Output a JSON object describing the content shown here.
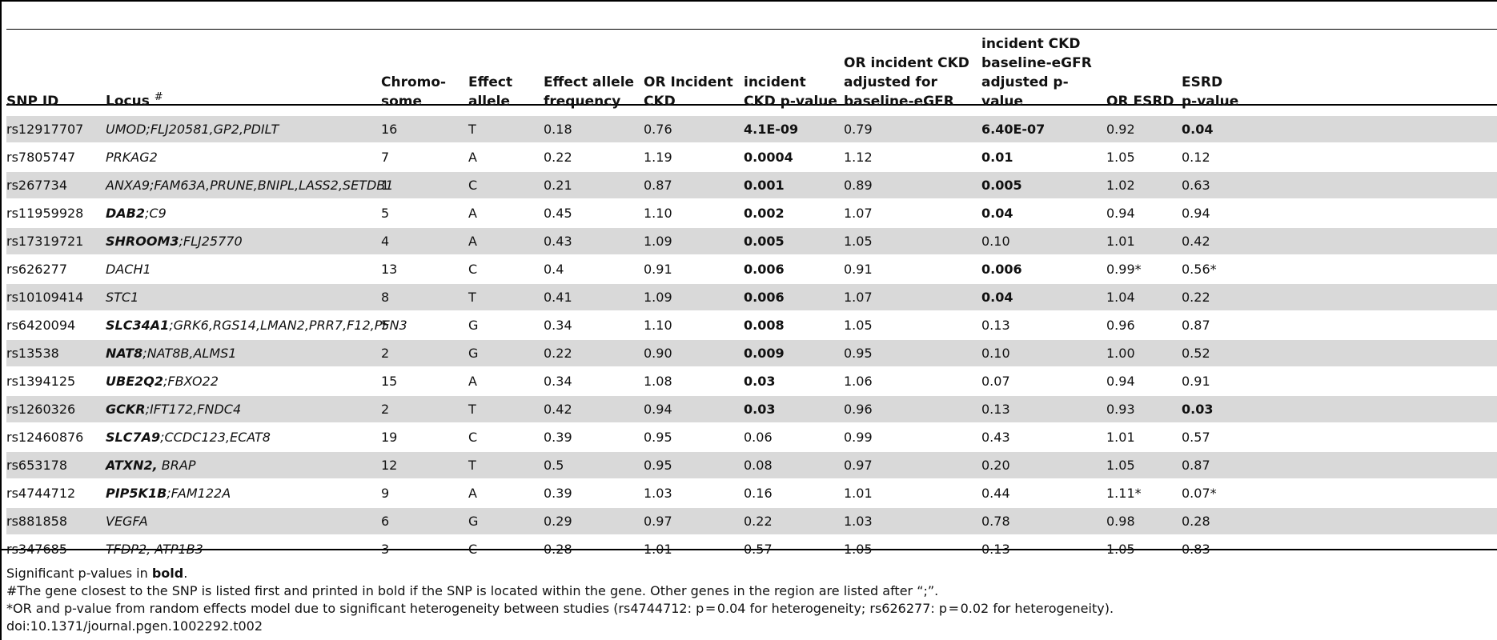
{
  "headers": {
    "snp_id": "SNP ID",
    "locus": "Locus",
    "locus_mark": "#",
    "chromosome_1": "Chromo-",
    "chromosome_2": "some",
    "effect_allele_1": "Effect",
    "effect_allele_2": "allele",
    "eaf_1": "Effect allele",
    "eaf_2": "frequency",
    "or_incident_1": "OR Incident",
    "or_incident_2": "CKD",
    "inc_p_1": "incident",
    "inc_p_2": "CKD p-value",
    "or_adj_1": "OR incident CKD",
    "or_adj_2": "adjusted for",
    "or_adj_3": "baseline-eGFR",
    "adj_p_1": "incident CKD",
    "adj_p_2": "baseline-eGFR",
    "adj_p_3": "adjusted p-value",
    "or_esrd": "OR ESRD",
    "esrd_p_1": "ESRD",
    "esrd_p_2": "p-value"
  },
  "rows": [
    {
      "snp": "rs12917707",
      "locus_bold": "",
      "locus_rest": "UMOD;FLJ20581,GP2,PDILT",
      "chr": "16",
      "allele": "T",
      "eaf": "0.18",
      "or_inc": "0.76",
      "p_inc": "4.1E-09",
      "p_inc_bold": true,
      "or_adj": "0.79",
      "p_adj": "6.40E-07",
      "p_adj_bold": true,
      "or_esrd": "0.92",
      "p_esrd": "0.04",
      "p_esrd_bold": true
    },
    {
      "snp": "rs7805747",
      "locus_bold": "",
      "locus_rest": "PRKAG2",
      "chr": "7",
      "allele": "A",
      "eaf": "0.22",
      "or_inc": "1.19",
      "p_inc": "0.0004",
      "p_inc_bold": true,
      "or_adj": "1.12",
      "p_adj": "0.01",
      "p_adj_bold": true,
      "or_esrd": "1.05",
      "p_esrd": "0.12",
      "p_esrd_bold": false
    },
    {
      "snp": "rs267734",
      "locus_bold": "",
      "locus_rest": "ANXA9;FAM63A,PRUNE,BNIPL,LASS2,SETDB1",
      "chr": "1",
      "allele": "C",
      "eaf": "0.21",
      "or_inc": "0.87",
      "p_inc": "0.001",
      "p_inc_bold": true,
      "or_adj": "0.89",
      "p_adj": "0.005",
      "p_adj_bold": true,
      "or_esrd": "1.02",
      "p_esrd": "0.63",
      "p_esrd_bold": false
    },
    {
      "snp": "rs11959928",
      "locus_bold": "DAB2",
      "locus_rest": ";C9",
      "chr": "5",
      "allele": "A",
      "eaf": "0.45",
      "or_inc": "1.10",
      "p_inc": "0.002",
      "p_inc_bold": true,
      "or_adj": "1.07",
      "p_adj": "0.04",
      "p_adj_bold": true,
      "or_esrd": "0.94",
      "p_esrd": "0.94",
      "p_esrd_bold": false
    },
    {
      "snp": "rs17319721",
      "locus_bold": "SHROOM3",
      "locus_rest": ";FLJ25770",
      "chr": "4",
      "allele": "A",
      "eaf": "0.43",
      "or_inc": "1.09",
      "p_inc": "0.005",
      "p_inc_bold": true,
      "or_adj": "1.05",
      "p_adj": "0.10",
      "p_adj_bold": false,
      "or_esrd": "1.01",
      "p_esrd": "0.42",
      "p_esrd_bold": false
    },
    {
      "snp": "rs626277",
      "locus_bold": "",
      "locus_rest": "DACH1",
      "chr": "13",
      "allele": "C",
      "eaf": "0.4",
      "or_inc": "0.91",
      "p_inc": "0.006",
      "p_inc_bold": true,
      "or_adj": "0.91",
      "p_adj": "0.006",
      "p_adj_bold": true,
      "or_esrd": "0.99*",
      "p_esrd": "0.56*",
      "p_esrd_bold": false
    },
    {
      "snp": "rs10109414",
      "locus_bold": "",
      "locus_rest": "STC1",
      "chr": "8",
      "allele": "T",
      "eaf": "0.41",
      "or_inc": "1.09",
      "p_inc": "0.006",
      "p_inc_bold": true,
      "or_adj": "1.07",
      "p_adj": "0.04",
      "p_adj_bold": true,
      "or_esrd": "1.04",
      "p_esrd": "0.22",
      "p_esrd_bold": false
    },
    {
      "snp": "rs6420094",
      "locus_bold": "SLC34A1",
      "locus_rest": ";GRK6,RGS14,LMAN2,PRR7,F12,PFN3",
      "chr": "5",
      "allele": "G",
      "eaf": "0.34",
      "or_inc": "1.10",
      "p_inc": "0.008",
      "p_inc_bold": true,
      "or_adj": "1.05",
      "p_adj": "0.13",
      "p_adj_bold": false,
      "or_esrd": "0.96",
      "p_esrd": "0.87",
      "p_esrd_bold": false
    },
    {
      "snp": "rs13538",
      "locus_bold": "NAT8",
      "locus_rest": ";NAT8B,ALMS1",
      "chr": "2",
      "allele": "G",
      "eaf": "0.22",
      "or_inc": "0.90",
      "p_inc": "0.009",
      "p_inc_bold": true,
      "or_adj": "0.95",
      "p_adj": "0.10",
      "p_adj_bold": false,
      "or_esrd": "1.00",
      "p_esrd": "0.52",
      "p_esrd_bold": false
    },
    {
      "snp": "rs1394125",
      "locus_bold": "UBE2Q2",
      "locus_rest": ";FBXO22",
      "chr": "15",
      "allele": "A",
      "eaf": "0.34",
      "or_inc": "1.08",
      "p_inc": "0.03",
      "p_inc_bold": true,
      "or_adj": "1.06",
      "p_adj": "0.07",
      "p_adj_bold": false,
      "or_esrd": "0.94",
      "p_esrd": "0.91",
      "p_esrd_bold": false
    },
    {
      "snp": "rs1260326",
      "locus_bold": "GCKR",
      "locus_rest": ";IFT172,FNDC4",
      "chr": "2",
      "allele": "T",
      "eaf": "0.42",
      "or_inc": "0.94",
      "p_inc": "0.03",
      "p_inc_bold": true,
      "or_adj": "0.96",
      "p_adj": "0.13",
      "p_adj_bold": false,
      "or_esrd": "0.93",
      "p_esrd": "0.03",
      "p_esrd_bold": true
    },
    {
      "snp": "rs12460876",
      "locus_bold": "SLC7A9",
      "locus_rest": ";CCDC123,ECAT8",
      "chr": "19",
      "allele": "C",
      "eaf": "0.39",
      "or_inc": "0.95",
      "p_inc": "0.06",
      "p_inc_bold": false,
      "or_adj": "0.99",
      "p_adj": "0.43",
      "p_adj_bold": false,
      "or_esrd": "1.01",
      "p_esrd": "0.57",
      "p_esrd_bold": false
    },
    {
      "snp": "rs653178",
      "locus_bold": "ATXN2,",
      "locus_rest": " BRAP",
      "chr": "12",
      "allele": "T",
      "eaf": "0.5",
      "or_inc": "0.95",
      "p_inc": "0.08",
      "p_inc_bold": false,
      "or_adj": "0.97",
      "p_adj": "0.20",
      "p_adj_bold": false,
      "or_esrd": "1.05",
      "p_esrd": "0.87",
      "p_esrd_bold": false
    },
    {
      "snp": "rs4744712",
      "locus_bold": "PIP5K1B",
      "locus_rest": ";FAM122A",
      "chr": "9",
      "allele": "A",
      "eaf": "0.39",
      "or_inc": "1.03",
      "p_inc": "0.16",
      "p_inc_bold": false,
      "or_adj": "1.01",
      "p_adj": "0.44",
      "p_adj_bold": false,
      "or_esrd": "1.11*",
      "p_esrd": "0.07*",
      "p_esrd_bold": false
    },
    {
      "snp": "rs881858",
      "locus_bold": "",
      "locus_rest": "VEGFA",
      "chr": "6",
      "allele": "G",
      "eaf": "0.29",
      "or_inc": "0.97",
      "p_inc": "0.22",
      "p_inc_bold": false,
      "or_adj": "1.03",
      "p_adj": "0.78",
      "p_adj_bold": false,
      "or_esrd": "0.98",
      "p_esrd": "0.28",
      "p_esrd_bold": false
    },
    {
      "snp": "rs347685",
      "locus_bold": "",
      "locus_rest": "TFDP2, ATP1B3",
      "chr": "3",
      "allele": "C",
      "eaf": "0.28",
      "or_inc": "1.01",
      "p_inc": "0.57",
      "p_inc_bold": false,
      "or_adj": "1.05",
      "p_adj": "0.13",
      "p_adj_bold": false,
      "or_esrd": "1.05",
      "p_esrd": "0.83",
      "p_esrd_bold": false
    }
  ],
  "footnotes": {
    "sig_prefix": "Significant p-values in ",
    "sig_bold": "bold",
    "sig_suffix": ".",
    "hash_note": "#The gene closest to the SNP is listed first and printed in bold if the SNP is located within the gene. Other genes in the region are listed after “;”.",
    "star_note": "*OR and p-value from random effects model due to significant heterogeneity between studies (rs4744712: p = 0.04 for heterogeneity; rs626277: p = 0.02 for heterogeneity).",
    "doi": "doi:10.1371/journal.pgen.1002292.t002"
  },
  "colors": {
    "row_shade": "#d9d9d9",
    "rule": "#000000"
  }
}
